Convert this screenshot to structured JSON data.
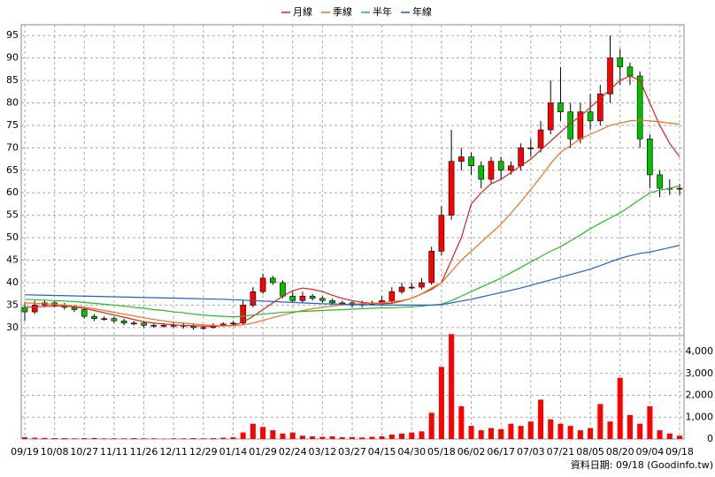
{
  "chart_data": {
    "type": "candlestick",
    "legend": [
      {
        "name": "月線",
        "color": "#e02020"
      },
      {
        "name": "季線",
        "color": "#f07020"
      },
      {
        "name": "半年",
        "color": "#20c020"
      },
      {
        "name": "年線",
        "color": "#2060d0"
      }
    ],
    "source": "資料日期: 09/18 (Goodinfo.tw)",
    "categories": [
      "09/19",
      null,
      null,
      "10/08",
      null,
      null,
      "10/27",
      null,
      null,
      "11/11",
      null,
      null,
      "11/26",
      null,
      null,
      "12/11",
      null,
      null,
      "12/29",
      null,
      null,
      "01/14",
      null,
      null,
      "01/29",
      null,
      null,
      "02/24",
      null,
      null,
      "03/12",
      null,
      null,
      "03/27",
      null,
      null,
      "04/15",
      null,
      null,
      "04/30",
      null,
      null,
      "05/18",
      null,
      null,
      "06/02",
      null,
      null,
      "06/17",
      null,
      null,
      "07/03",
      null,
      null,
      "07/21",
      null,
      null,
      "08/05",
      null,
      null,
      "08/20",
      null,
      null,
      "09/04",
      null,
      null,
      "09/18"
    ],
    "open": [
      34.5,
      33.5,
      35,
      35.5,
      35,
      34.5,
      34,
      32.5,
      32,
      32,
      31.5,
      31,
      31,
      30.5,
      30.5,
      30.5,
      30.5,
      30.3,
      30,
      30,
      30.5,
      30.8,
      31,
      35,
      38,
      41,
      40,
      37,
      36,
      37,
      36.5,
      36,
      35.5,
      35.5,
      35,
      35.2,
      35.5,
      36,
      38,
      39,
      39,
      40,
      47,
      55,
      67,
      68,
      66,
      63,
      67,
      65,
      66,
      70,
      70,
      74,
      80,
      78,
      72,
      78,
      76,
      82,
      90,
      88,
      86,
      72,
      64,
      61,
      61
    ],
    "high": [
      35.5,
      36,
      36,
      36,
      35.5,
      35,
      34.5,
      33,
      32.5,
      32.5,
      32,
      31.5,
      31.5,
      31,
      31,
      31,
      31,
      30.8,
      30.5,
      31,
      31.2,
      31.5,
      36,
      39,
      42,
      41.5,
      40.5,
      38,
      38,
      37.5,
      37,
      36.5,
      36,
      36,
      36,
      36,
      37,
      39,
      40,
      40,
      41,
      48,
      57,
      74,
      70,
      69,
      67,
      68,
      68,
      67,
      71,
      72,
      76,
      85,
      88,
      80,
      80,
      82,
      84,
      95,
      92,
      89,
      87,
      73,
      65,
      63,
      62
    ],
    "low": [
      31.5,
      33,
      34.5,
      34.5,
      34,
      33.5,
      32,
      31.5,
      31.5,
      31,
      30.5,
      30.5,
      30,
      30,
      30,
      30,
      29.8,
      29.5,
      29.5,
      29.8,
      30.2,
      30.5,
      30.5,
      34.5,
      37.5,
      39.5,
      36.5,
      35.5,
      35.5,
      36,
      35.5,
      35,
      35,
      34.5,
      34.5,
      35,
      35,
      35.5,
      37.5,
      38.5,
      38.5,
      39.5,
      46,
      54,
      65,
      64,
      61,
      62,
      63,
      64,
      65,
      68,
      69,
      73,
      76,
      70,
      71,
      74,
      75,
      80,
      84,
      84,
      70,
      61,
      59,
      59.5,
      59.5
    ],
    "close": [
      33.5,
      35,
      35.5,
      35,
      34.5,
      34,
      32.5,
      32,
      32,
      31.5,
      31,
      31,
      30.5,
      30.5,
      30.5,
      30.5,
      30.3,
      30,
      30,
      30.5,
      30.8,
      31,
      35,
      38,
      41,
      40,
      37,
      36,
      37,
      36.5,
      36,
      35.5,
      35.5,
      35,
      35.2,
      35.5,
      36,
      38,
      39,
      39,
      40,
      47,
      55,
      67,
      68,
      66,
      63,
      67,
      65,
      66,
      70,
      70,
      74,
      80,
      78,
      72,
      78,
      76,
      82,
      90,
      88,
      86,
      72,
      64,
      61,
      61,
      61
    ],
    "up_color": "#ff0000",
    "down_color": "#00c000",
    "moving_averages": [
      {
        "name": "月線",
        "color": "#e02020",
        "values": [
          34.5,
          34.6,
          34.7,
          34.8,
          34.8,
          34.6,
          34.3,
          33.8,
          33.3,
          32.8,
          32.3,
          31.8,
          31.3,
          31,
          30.8,
          30.6,
          30.5,
          30.4,
          30.3,
          30.3,
          30.4,
          30.5,
          31.2,
          32.5,
          34,
          35.5,
          37,
          38.2,
          38.8,
          38.5,
          38,
          37.2,
          36.5,
          36,
          35.6,
          35.4,
          35.3,
          35.4,
          35.9,
          36.5,
          37.5,
          38.5,
          40,
          45,
          50,
          57.5,
          60,
          62,
          63,
          64.5,
          66,
          67.5,
          69.5,
          71.5,
          73.5,
          75.5,
          77,
          79,
          81,
          83,
          85,
          86,
          85,
          80,
          75,
          71,
          68
        ]
      },
      {
        "name": "季線",
        "color": "#f07020",
        "values": [
          35.5,
          35.4,
          35.3,
          35.2,
          35,
          34.8,
          34.5,
          34.2,
          33.8,
          33.4,
          33,
          32.6,
          32.2,
          31.8,
          31.5,
          31.2,
          31,
          30.8,
          30.6,
          30.5,
          30.4,
          30.4,
          30.6,
          31,
          31.6,
          32.2,
          32.8,
          33.3,
          33.8,
          34.2,
          34.5,
          34.8,
          35,
          35.2,
          35.3,
          35.4,
          35.5,
          35.8,
          36,
          36.5,
          37.5,
          38.8,
          40,
          42.5,
          45,
          47,
          49,
          51,
          53,
          55.5,
          58,
          60.7,
          63.5,
          66.5,
          69,
          70.5,
          72,
          73,
          74,
          75,
          75.5,
          76,
          76.2,
          76,
          75.8,
          75.5,
          75.3
        ]
      },
      {
        "name": "半年",
        "color": "#20c020",
        "values": [
          36.3,
          36.2,
          36.1,
          36,
          35.9,
          35.8,
          35.6,
          35.4,
          35.2,
          35,
          34.8,
          34.5,
          34.3,
          34,
          33.8,
          33.5,
          33.3,
          33,
          32.8,
          32.6,
          32.5,
          32.4,
          32.5,
          32.8,
          33,
          33.2,
          33.4,
          33.5,
          33.6,
          33.7,
          33.8,
          33.9,
          34,
          34.1,
          34.2,
          34.3,
          34.4,
          34.4,
          34.5,
          34.6,
          34.8,
          35,
          35.2,
          36,
          37,
          38,
          39,
          40,
          41,
          42.2,
          43.4,
          44.6,
          45.8,
          47,
          48,
          49.3,
          50.6,
          52,
          53.2,
          54.4,
          55.5,
          57,
          58.5,
          60,
          60.6,
          61,
          61.5
        ]
      },
      {
        "name": "年線",
        "color": "#2060d0",
        "values": [
          37.3,
          37.25,
          37.2,
          37.15,
          37.1,
          37.05,
          37,
          36.95,
          36.9,
          36.85,
          36.8,
          36.75,
          36.7,
          36.65,
          36.6,
          36.55,
          36.5,
          36.45,
          36.4,
          36.35,
          36.3,
          36.2,
          36.1,
          36,
          35.9,
          35.8,
          35.7,
          35.6,
          35.5,
          35.4,
          35.3,
          35.25,
          35.2,
          35.15,
          35.1,
          35.05,
          35,
          35,
          35,
          35,
          35,
          35,
          35.1,
          35.5,
          35.9,
          36.3,
          36.8,
          37.3,
          37.8,
          38.3,
          38.8,
          39.4,
          40,
          40.6,
          41.2,
          41.8,
          42.4,
          43,
          43.8,
          44.6,
          45.4,
          46,
          46.5,
          46.8,
          47.3,
          47.8,
          48.3
        ]
      }
    ],
    "volume": {
      "color": "#ff0000",
      "values": [
        80,
        60,
        50,
        40,
        40,
        30,
        40,
        50,
        30,
        30,
        30,
        40,
        30,
        30,
        20,
        30,
        30,
        40,
        30,
        40,
        60,
        80,
        300,
        700,
        550,
        400,
        250,
        300,
        150,
        120,
        100,
        120,
        80,
        90,
        70,
        100,
        120,
        200,
        250,
        300,
        350,
        1200,
        3300,
        4800,
        1500,
        600,
        400,
        500,
        450,
        700,
        600,
        800,
        1800,
        900,
        700,
        600,
        400,
        500,
        1600,
        800,
        2800,
        1100,
        700,
        1500,
        400,
        250,
        150
      ]
    },
    "ylim": [
      28.2,
      97.4
    ],
    "yticks": [
      30,
      35,
      40,
      45,
      50,
      55,
      60,
      65,
      70,
      75,
      80,
      85,
      90,
      95
    ],
    "y2lim": [
      0,
      4730
    ],
    "y2ticks": [
      0,
      {
        "value": 1000,
        "label": "1,000"
      },
      {
        "value": 2000,
        "label": "2,000"
      },
      {
        "value": 3000,
        "label": "3,000"
      },
      {
        "value": 4000,
        "label": "4,000"
      }
    ],
    "grid": true
  }
}
